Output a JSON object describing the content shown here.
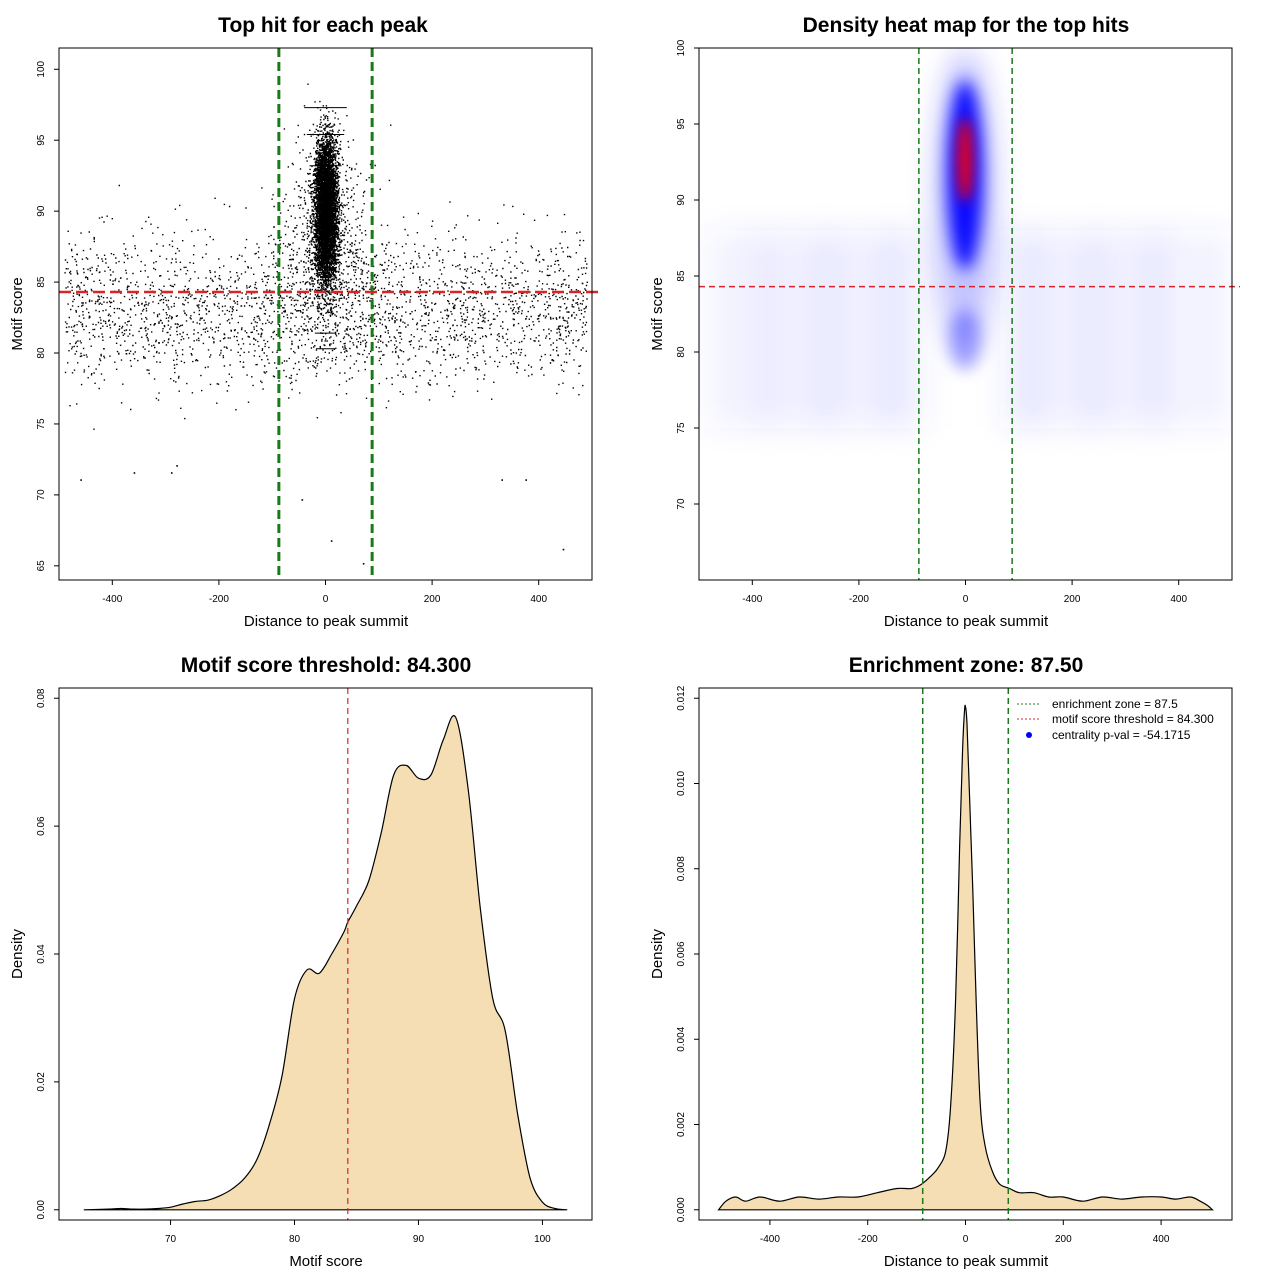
{
  "chart_data": [
    {
      "id": "scatter",
      "type": "scatter",
      "title": "Top hit for each peak",
      "xlabel": "Distance to peak summit",
      "ylabel": "Motif score",
      "xlim": [
        -500,
        500
      ],
      "ylim": [
        64,
        101.5
      ],
      "xticks": [
        -400,
        -200,
        0,
        200,
        400
      ],
      "yticks": [
        65,
        70,
        75,
        80,
        85,
        90,
        95,
        100
      ],
      "hline": {
        "y": 84.3,
        "color": "#d62728",
        "style": "dashed"
      },
      "vlines": [
        {
          "x": -87.5,
          "color": "#1a7a1a"
        },
        {
          "x": 87.5,
          "color": "#1a7a1a"
        }
      ],
      "points": {
        "approx_count": 9000,
        "description": "dense central cluster around x=0 (±40) with scores 80-100, sparse background spread over -500..500 with scores 71-96",
        "outliers": [
          [
            -460,
            71.1
          ],
          [
            -290,
            71.6
          ],
          [
            -280,
            72.1
          ],
          [
            -360,
            71.6
          ],
          [
            330,
            71.1
          ],
          [
            375,
            71.1
          ],
          [
            -45,
            69.7
          ],
          [
            10,
            66.8
          ],
          [
            70,
            65.2
          ],
          [
            445,
            66.2
          ]
        ]
      }
    },
    {
      "id": "heatmap",
      "type": "heatmap",
      "title": "Density heat map for the top hits",
      "xlabel": "Distance to peak summit",
      "ylabel": "Motif score",
      "xlim": [
        -500,
        500
      ],
      "ylim": [
        65,
        100
      ],
      "xticks": [
        -400,
        -200,
        0,
        200,
        400
      ],
      "yticks": [
        70,
        75,
        80,
        85,
        90,
        95,
        100
      ],
      "hline": {
        "y": 84.3,
        "color": "#d62728",
        "style": "dashed"
      },
      "vlines": [
        {
          "x": -87.5,
          "color": "#1a7a1a"
        },
        {
          "x": 87.5,
          "color": "#1a7a1a"
        }
      ],
      "color_scale": [
        "#ffffff",
        "#0000ff",
        "#ff0000"
      ],
      "peak": {
        "x": 0,
        "y": 93
      }
    },
    {
      "id": "score-density",
      "type": "area",
      "title": "Motif score threshold: 84.300",
      "xlabel": "Motif score",
      "ylabel": "Density",
      "xlim": [
        61,
        104
      ],
      "ylim": [
        -0.0016,
        0.0816
      ],
      "xticks": [
        70,
        80,
        90,
        100
      ],
      "yticks": [
        0.0,
        0.02,
        0.04,
        0.06,
        0.08
      ],
      "ytick_labels": [
        "0.00",
        "0.02",
        "0.04",
        "0.06",
        "0.08"
      ],
      "vline": {
        "x": 84.3,
        "color": "#d62728",
        "style": "dashed"
      },
      "fill": "#f5deb3",
      "x": [
        63,
        65,
        66,
        67,
        68,
        69,
        70,
        71,
        72,
        73,
        74,
        75,
        76,
        77,
        78,
        79,
        80,
        81,
        82,
        83,
        84,
        84.3,
        85,
        86,
        87,
        88,
        89,
        90,
        91,
        92,
        93,
        94,
        95,
        96,
        97,
        98,
        99,
        100,
        101,
        102
      ],
      "y": [
        0.0,
        0.0001,
        0.0002,
        0.0001,
        0.0001,
        0.0002,
        0.0004,
        0.0009,
        0.0013,
        0.0015,
        0.0022,
        0.0033,
        0.005,
        0.008,
        0.0135,
        0.021,
        0.033,
        0.0375,
        0.037,
        0.04,
        0.0435,
        0.045,
        0.0475,
        0.0515,
        0.059,
        0.068,
        0.0695,
        0.0675,
        0.068,
        0.0735,
        0.077,
        0.066,
        0.047,
        0.033,
        0.028,
        0.015,
        0.005,
        0.0012,
        0.0002,
        0.0
      ]
    },
    {
      "id": "distance-density",
      "type": "area",
      "title": "Enrichment zone: 87.50",
      "xlabel": "Distance to peak summit",
      "ylabel": "Density",
      "xlim": [
        -545,
        545
      ],
      "ylim": [
        -0.00024,
        0.01224
      ],
      "xticks": [
        -400,
        -200,
        0,
        200,
        400
      ],
      "yticks": [
        0.0,
        0.002,
        0.004,
        0.006,
        0.008,
        0.01,
        0.012
      ],
      "ytick_labels": [
        "0.000",
        "0.002",
        "0.004",
        "0.006",
        "0.008",
        "0.010",
        "0.012"
      ],
      "vlines": [
        {
          "x": -87.5,
          "color": "#1a7a1a"
        },
        {
          "x": 87.5,
          "color": "#1a7a1a"
        }
      ],
      "fill": "#f5deb3",
      "x": [
        -505,
        -490,
        -470,
        -450,
        -420,
        -380,
        -340,
        -300,
        -260,
        -220,
        -180,
        -140,
        -110,
        -90,
        -70,
        -55,
        -40,
        -30,
        -20,
        -12,
        -6,
        -2,
        0,
        3,
        8,
        15,
        22,
        30,
        40,
        55,
        70,
        90,
        110,
        140,
        170,
        200,
        240,
        280,
        320,
        360,
        400,
        430,
        460,
        480,
        495,
        505
      ],
      "y": [
        0.0,
        0.0002,
        0.0003,
        0.0002,
        0.0003,
        0.0002,
        0.0003,
        0.00025,
        0.0003,
        0.0003,
        0.0004,
        0.0005,
        0.0005,
        0.0006,
        0.0008,
        0.001,
        0.0014,
        0.0025,
        0.005,
        0.0085,
        0.0108,
        0.0117,
        0.0118,
        0.0114,
        0.0098,
        0.0075,
        0.0048,
        0.0025,
        0.0015,
        0.0009,
        0.0006,
        0.0005,
        0.0004,
        0.0004,
        0.0003,
        0.0003,
        0.0002,
        0.0003,
        0.00025,
        0.0003,
        0.0003,
        0.00025,
        0.0003,
        0.0002,
        0.0001,
        0.0
      ],
      "legend": {
        "position": "top-right",
        "entries": [
          {
            "label": "enrichment zone = 87.5",
            "color": "#1a7a1a",
            "kind": "line"
          },
          {
            "label": "motif score threshold = 84.300",
            "color": "#d62728",
            "kind": "line"
          },
          {
            "label": "centrality p-val = -54.1715",
            "color": "#0000ff",
            "kind": "point"
          }
        ]
      }
    }
  ]
}
